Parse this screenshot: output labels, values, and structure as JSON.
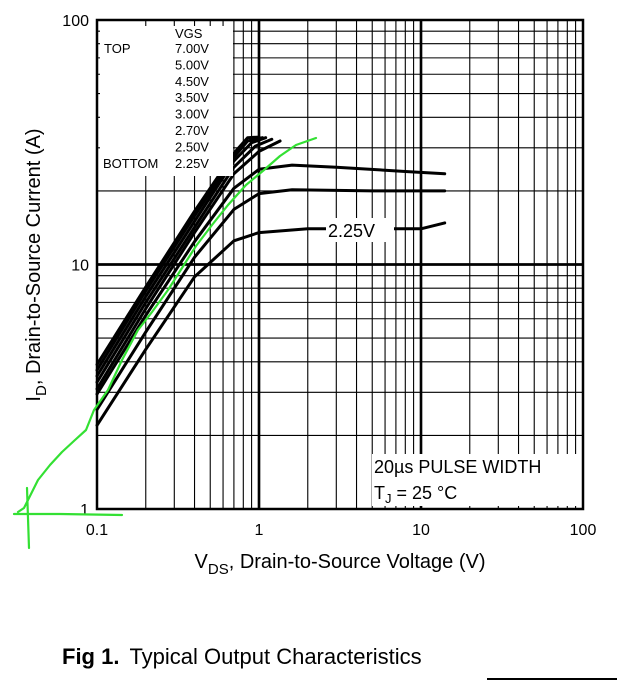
{
  "caption": {
    "number": "Fig 1.",
    "text": "Typical Output Characteristics"
  },
  "chart_data": {
    "type": "line",
    "x_scale": "log",
    "y_scale": "log",
    "xlim": [
      0.1,
      100
    ],
    "ylim": [
      1,
      100
    ],
    "grid": true,
    "x_ticks": [
      "0.1",
      "1",
      "10",
      "100"
    ],
    "y_ticks": [
      "1",
      "10",
      "100"
    ],
    "xlabel": {
      "main": "V",
      "sub": "DS",
      "rest": ", Drain-to-Source Voltage (V)"
    },
    "ylabel": {
      "main": "I",
      "sub": "D",
      "rest": ",  Drain-to-Source Current (A)"
    },
    "legend": {
      "title": "VGS",
      "top_label": "TOP",
      "bottom_label": "BOTTOM",
      "entries": [
        "7.00V",
        "5.00V",
        "4.50V",
        "3.50V",
        "3.00V",
        "2.70V",
        "2.50V",
        "2.25V"
      ]
    },
    "annotations": {
      "curve_label": "2.25V",
      "pulse": "20µs PULSE WIDTH",
      "temp_main": "T",
      "temp_sub": "J",
      "temp_rest": " = 25 °C"
    },
    "series": [
      {
        "points": [
          [
            0.1,
            3.9
          ],
          [
            0.2,
            8.1
          ],
          [
            0.4,
            16.5
          ],
          [
            0.7,
            28.5
          ],
          [
            0.85,
            33
          ],
          [
            1.0,
            33.2
          ]
        ]
      },
      {
        "points": [
          [
            0.1,
            3.7
          ],
          [
            0.2,
            7.8
          ],
          [
            0.4,
            15.8
          ],
          [
            0.7,
            27.5
          ],
          [
            0.85,
            32
          ],
          [
            1.05,
            33
          ]
        ]
      },
      {
        "points": [
          [
            0.1,
            3.5
          ],
          [
            0.2,
            7.4
          ],
          [
            0.4,
            15.0
          ],
          [
            0.7,
            26.5
          ],
          [
            0.9,
            31.5
          ],
          [
            1.1,
            33
          ]
        ]
      },
      {
        "points": [
          [
            0.1,
            3.3
          ],
          [
            0.2,
            7.0
          ],
          [
            0.4,
            14.2
          ],
          [
            0.7,
            25.0
          ],
          [
            0.95,
            30.5
          ],
          [
            1.2,
            32.5
          ]
        ]
      },
      {
        "points": [
          [
            0.1,
            3.1
          ],
          [
            0.2,
            6.6
          ],
          [
            0.4,
            13.5
          ],
          [
            0.7,
            23.5
          ],
          [
            1.0,
            29.0
          ],
          [
            1.35,
            32.0
          ]
        ]
      },
      {
        "points": [
          [
            0.1,
            2.95
          ],
          [
            0.2,
            6.2
          ],
          [
            0.4,
            12.4
          ],
          [
            0.7,
            20.5
          ],
          [
            1.0,
            24.5
          ],
          [
            1.6,
            25.5
          ],
          [
            3,
            25.0
          ],
          [
            8,
            24.0
          ],
          [
            14,
            23.5
          ]
        ]
      },
      {
        "points": [
          [
            0.1,
            2.55
          ],
          [
            0.2,
            5.3
          ],
          [
            0.4,
            10.7
          ],
          [
            0.7,
            16.8
          ],
          [
            1.0,
            19.5
          ],
          [
            1.6,
            20.2
          ],
          [
            5,
            20.0
          ],
          [
            14,
            20.0
          ]
        ]
      },
      {
        "points": [
          [
            0.1,
            2.2
          ],
          [
            0.2,
            4.5
          ],
          [
            0.4,
            8.9
          ],
          [
            0.7,
            12.5
          ],
          [
            1.0,
            13.5
          ],
          [
            2,
            14.0
          ],
          [
            5,
            14.0
          ],
          [
            10,
            14.0
          ],
          [
            14,
            14.8
          ]
        ]
      }
    ]
  }
}
